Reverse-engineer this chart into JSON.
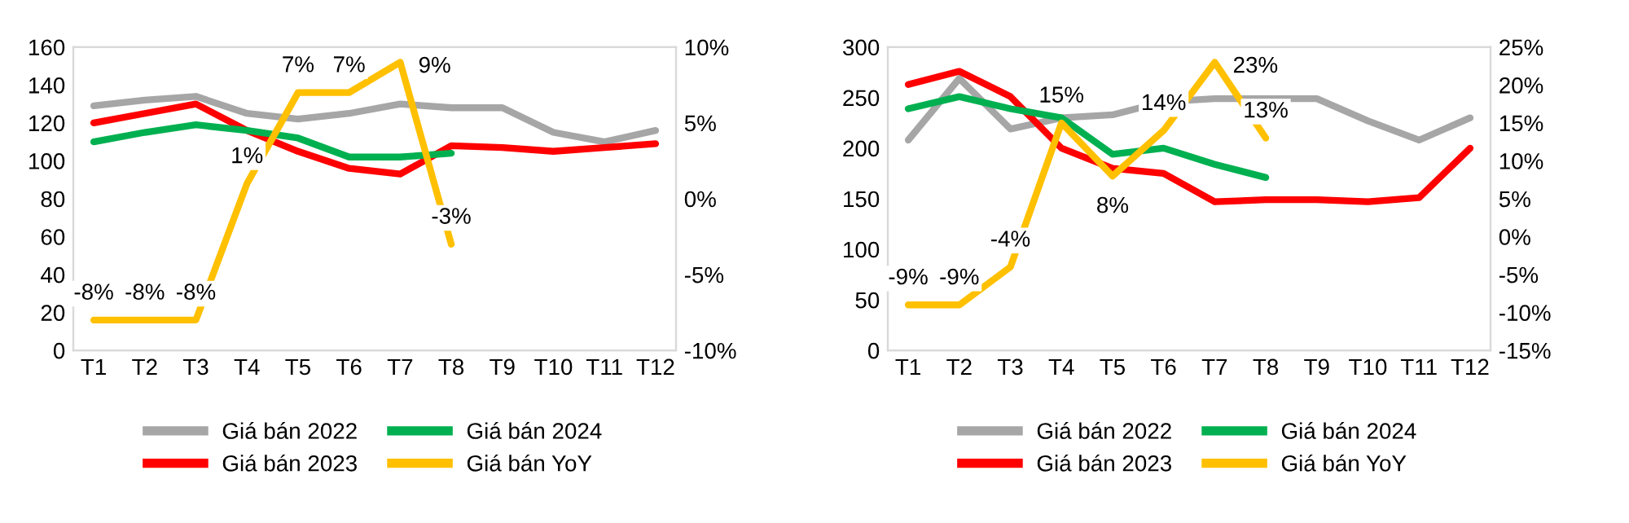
{
  "chart_data": [
    {
      "type": "line",
      "categories": [
        "T1",
        "T2",
        "T3",
        "T4",
        "T5",
        "T6",
        "T7",
        "T8",
        "T9",
        "T10",
        "T11",
        "T12"
      ],
      "ylim": [
        0,
        160
      ],
      "yticks": [
        0,
        20,
        40,
        60,
        80,
        100,
        120,
        140,
        160
      ],
      "y2lim": [
        -10,
        10
      ],
      "y2ticks": [
        {
          "value": -10,
          "label": "-10%"
        },
        {
          "value": -5,
          "label": "-5%"
        },
        {
          "value": 0,
          "label": "0%"
        },
        {
          "value": 5,
          "label": "5%"
        },
        {
          "value": 10,
          "label": "10%"
        }
      ],
      "grid": false,
      "legend": "bottom",
      "marker": "none",
      "line_style": "solid",
      "series": [
        {
          "name": "Giá bán 2022",
          "color": "#a6a6a6",
          "values": [
            129,
            132,
            134,
            125,
            122,
            125,
            130,
            128,
            128,
            115,
            110,
            116
          ]
        },
        {
          "name": "Giá bán 2023",
          "color": "#ff0000",
          "values": [
            120,
            125,
            130,
            116,
            105,
            96,
            93,
            108,
            107,
            105,
            107,
            109
          ]
        },
        {
          "name": "Giá bán 2024",
          "color": "#00b050",
          "values": [
            110,
            115,
            119,
            116,
            112,
            102,
            102,
            104,
            null,
            null,
            null,
            null
          ]
        },
        {
          "name": "Giá bán YoY",
          "color": "#ffc000",
          "axis": "y2",
          "values": [
            -8,
            -8,
            -8,
            1,
            7,
            7,
            9,
            -3,
            null,
            null,
            null,
            null
          ],
          "value_labels": [
            "-8%",
            "-8%",
            "-8%",
            "1%",
            "7%",
            "7%",
            "9%",
            "-3%",
            null,
            null,
            null,
            null
          ]
        }
      ]
    },
    {
      "type": "line",
      "categories": [
        "T1",
        "T2",
        "T3",
        "T4",
        "T5",
        "T6",
        "T7",
        "T8",
        "T9",
        "T10",
        "T11",
        "T12"
      ],
      "ylim": [
        0,
        300
      ],
      "yticks": [
        0,
        50,
        100,
        150,
        200,
        250,
        300
      ],
      "y2lim": [
        -15,
        25
      ],
      "y2ticks": [
        {
          "value": -15,
          "label": "-15%"
        },
        {
          "value": -10,
          "label": "-10%"
        },
        {
          "value": -5,
          "label": "-5%"
        },
        {
          "value": 0,
          "label": "0%"
        },
        {
          "value": 5,
          "label": "5%"
        },
        {
          "value": 10,
          "label": "10%"
        },
        {
          "value": 15,
          "label": "15%"
        },
        {
          "value": 20,
          "label": "20%"
        },
        {
          "value": 25,
          "label": "25%"
        }
      ],
      "grid": false,
      "legend": "bottom",
      "marker": "none",
      "line_style": "solid",
      "series": [
        {
          "name": "Giá bán 2022",
          "color": "#a6a6a6",
          "values": [
            208,
            269,
            219,
            230,
            233,
            246,
            249,
            249,
            249,
            227,
            208,
            230
          ]
        },
        {
          "name": "Giá bán 2023",
          "color": "#ff0000",
          "values": [
            263,
            276,
            251,
            200,
            180,
            175,
            147,
            149,
            149,
            147,
            151,
            200
          ]
        },
        {
          "name": "Giá bán 2024",
          "color": "#00b050",
          "values": [
            239,
            251,
            239,
            230,
            194,
            200,
            184,
            171,
            null,
            null,
            null,
            null
          ]
        },
        {
          "name": "Giá bán YoY",
          "color": "#ffc000",
          "axis": "y2",
          "values": [
            -9,
            -9,
            -4,
            15,
            8,
            14,
            23,
            13,
            null,
            null,
            null,
            null
          ],
          "value_labels": [
            "-9%",
            "-9%",
            "-4%",
            "15%",
            "8%",
            "14%",
            "23%",
            "13%",
            null,
            null,
            null,
            null
          ]
        }
      ]
    }
  ]
}
